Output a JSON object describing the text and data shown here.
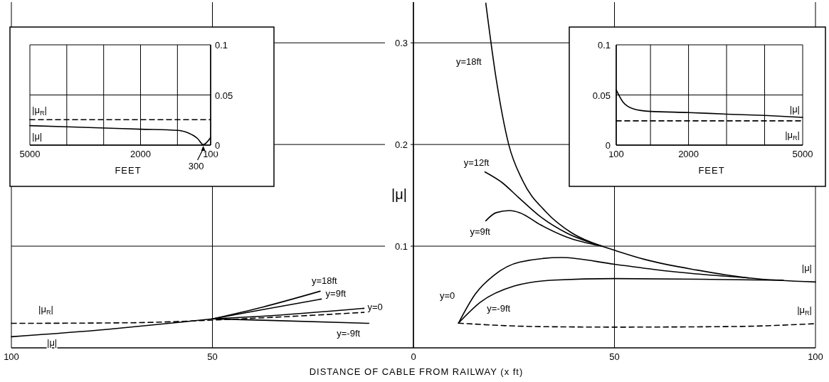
{
  "chart_data": [
    {
      "type": "line",
      "xlabel": "DISTANCE OF CABLE FROM RAILWAY (x ft)",
      "ylabel": "|μ|",
      "xlim": [
        -100,
        100
      ],
      "ylim": [
        0,
        0.34
      ],
      "xticks": [
        {
          "value": -100,
          "label": "100"
        },
        {
          "value": -50,
          "label": "50"
        },
        0,
        50,
        100
      ],
      "yticks": [
        {
          "value": 0.1,
          "label": "0.1"
        },
        {
          "value": 0.2,
          "label": "0.2"
        },
        {
          "value": 0.3,
          "label": "0.3"
        }
      ],
      "grid": true,
      "series": [
        {
          "name": "|μ|",
          "color": "#000000",
          "line_style": "solid",
          "x": [
            -100,
            -76.1,
            -56.8,
            -50
          ],
          "values": [
            0.0109,
            0.0182,
            0.0257,
            0.0285
          ]
        },
        {
          "name": "|μ$_{R}$|",
          "color": "#000000",
          "line_style": "dashed",
          "x": [
            -100,
            -70,
            -50,
            -30,
            -12.3
          ],
          "values": [
            0.0241,
            0.0247,
            0.0273,
            0.031,
            0.0349
          ]
        },
        {
          "name": "y=18ft",
          "color": "#000000",
          "line_style": "solid",
          "x": [
            -50,
            -37.5,
            -23.2
          ],
          "values": [
            0.0285,
            0.0401,
            0.0557
          ]
        },
        {
          "name": "y=9ft",
          "color": "#000000",
          "line_style": "solid",
          "x": [
            -50,
            -37.5,
            -22.9
          ],
          "values": [
            0.0285,
            0.0376,
            0.048
          ]
        },
        {
          "name": "y=0",
          "color": "#000000",
          "line_style": "solid",
          "x": [
            -50,
            -37.5,
            -12.3
          ],
          "values": [
            0.0285,
            0.0311,
            0.0389
          ]
        },
        {
          "name": "y=-9ft",
          "color": "#000000",
          "line_style": "solid",
          "x": [
            -50,
            -37.5,
            -11.1
          ],
          "values": [
            0.0285,
            0.0272,
            0.0241
          ]
        },
        {
          "name": "y=18ft",
          "color": "#000000",
          "line_style": "solid",
          "x": [
            18.0,
            20.6,
            23.7,
            27.1,
            32.9,
            39.4,
            46.9
          ],
          "values": [
            0.339,
            0.264,
            0.2,
            0.165,
            0.134,
            0.113,
            0.1
          ]
        },
        {
          "name": "y=12ft",
          "color": "#000000",
          "line_style": "solid",
          "x": [
            17.8,
            21.9,
            26.4,
            31.6,
            38.1,
            46.9
          ],
          "values": [
            0.173,
            0.163,
            0.147,
            0.129,
            0.113,
            0.1
          ]
        },
        {
          "name": "y=9ft",
          "color": "#000000",
          "line_style": "solid",
          "x": [
            18.0,
            20.6,
            23.9,
            26.4,
            31.6,
            38.1,
            46.9
          ],
          "values": [
            0.125,
            0.133,
            0.135,
            0.133,
            0.121,
            0.109,
            0.1
          ]
        },
        {
          "name": "|μ|",
          "color": "#000000",
          "line_style": "solid",
          "x": [
            46.9,
            50,
            57.5,
            70.5,
            83.5,
            100
          ],
          "values": [
            0.1,
            0.096,
            0.087,
            0.0765,
            0.0687,
            0.0648
          ]
        },
        {
          "name": "y=0",
          "color": "#000000",
          "line_style": "solid",
          "x": [
            11.2,
            15.4,
            20.0,
            26.4,
            36.8,
            50,
            64,
            83.5
          ],
          "values": [
            0.0243,
            0.053,
            0.0713,
            0.0843,
            0.0888,
            0.0822,
            0.0752,
            0.0687
          ]
        },
        {
          "name": "y=-9ft",
          "color": "#000000",
          "line_style": "solid",
          "x": [
            11.2,
            16.7,
            25.1,
            34.9,
            50,
            77,
            92
          ],
          "values": [
            0.0243,
            0.045,
            0.0608,
            0.0666,
            0.0681,
            0.0672,
            0.0665
          ]
        },
        {
          "name": "|μ$_{R}$|",
          "color": "#000000",
          "line_style": "dashed",
          "x": [
            11.2,
            30,
            50,
            80,
            100
          ],
          "values": [
            0.0243,
            0.021,
            0.0204,
            0.021,
            0.0238
          ]
        }
      ]
    },
    {
      "type": "line",
      "xlabel": "FEET",
      "xlim": [
        5000,
        100
      ],
      "ylim": [
        0,
        0.1
      ],
      "xticks": [
        5000,
        {
          "value": 4000,
          "label": null
        },
        {
          "value": 3000,
          "label": null
        },
        2000,
        {
          "value": 1000,
          "label": null
        },
        100
      ],
      "yticks": [
        0,
        0.05,
        0.1
      ],
      "grid": true,
      "annotations": [
        {
          "text": "300",
          "x": 300,
          "y": 0
        }
      ],
      "series": [
        {
          "name": "|μ|",
          "color": "#000000",
          "line_style": "solid",
          "x": [
            5000,
            4000,
            2000,
            1000,
            700,
            450,
            300,
            100
          ],
          "values": [
            0.0194,
            0.0183,
            0.0159,
            0.0147,
            0.012,
            0.0064,
            0.0005,
            0.0076
          ]
        },
        {
          "name": "|μ$_{R}$|",
          "color": "#000000",
          "line_style": "dashed",
          "x": [
            5000,
            100
          ],
          "values": [
            0.0254,
            0.0254
          ]
        }
      ]
    },
    {
      "type": "line",
      "xlabel": "FEET",
      "xlim": [
        100,
        5000
      ],
      "ylim": [
        0,
        0.1
      ],
      "xticks": [
        100,
        {
          "value": 1000,
          "label": null
        },
        2000,
        {
          "value": 3000,
          "label": null
        },
        {
          "value": 4000,
          "label": null
        },
        5000
      ],
      "yticks": [
        0,
        0.05,
        0.1
      ],
      "grid": true,
      "series": [
        {
          "name": "|μ|",
          "color": "#000000",
          "line_style": "solid",
          "x": [
            100,
            274,
            565,
            1000,
            2000,
            3000,
            4000,
            5000
          ],
          "values": [
            0.055,
            0.0431,
            0.036,
            0.0336,
            0.0325,
            0.0309,
            0.0296,
            0.0277
          ]
        },
        {
          "name": "|μ$_{R}$|",
          "color": "#000000",
          "line_style": "dashed",
          "x": [
            100,
            5000
          ],
          "values": [
            0.0242,
            0.0242
          ]
        }
      ]
    }
  ]
}
